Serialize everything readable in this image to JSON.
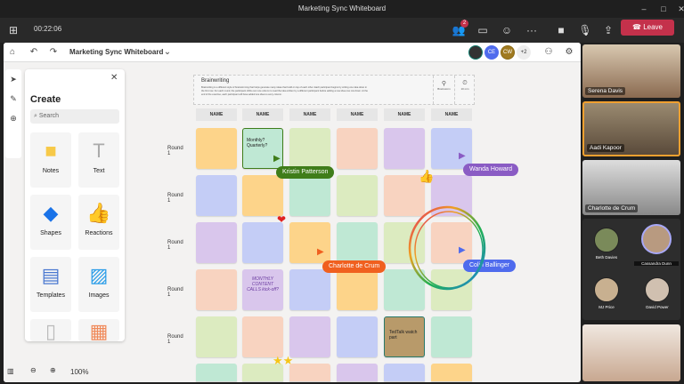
{
  "window": {
    "title": "Marketing Sync Whiteboard"
  },
  "meeting": {
    "timer": "00:22:06",
    "participants_badge": "2",
    "leave_label": "Leave"
  },
  "whiteboard": {
    "title": "Marketing Sync Whiteboard",
    "extra_collaborators": "+2",
    "collaborators": [
      {
        "initials": "",
        "color": "#0e7a6b"
      },
      {
        "initials": "CE",
        "color": "#4f6bed"
      },
      {
        "initials": "CW",
        "color": "#8a6a14"
      }
    ],
    "zoom": "100%"
  },
  "create_panel": {
    "title": "Create",
    "search_placeholder": "Search",
    "items": [
      {
        "label": "Notes",
        "icon": "sticky-note-icon"
      },
      {
        "label": "Text",
        "icon": "text-icon"
      },
      {
        "label": "Shapes",
        "icon": "shapes-icon"
      },
      {
        "label": "Reactions",
        "icon": "thumbs-up-icon"
      },
      {
        "label": "Templates",
        "icon": "templates-icon"
      },
      {
        "label": "Images",
        "icon": "image-icon"
      }
    ]
  },
  "template": {
    "title": "Brainwriting",
    "description": "Brainwriting is a different style of brainstorming that helps generate many ideas that build on top of each other. Each participant begins by writing one idea down in the first row. For each round, the participant shifts over one column to read the idea written by a different participant before adding a new idea one row down. At the end of the exercise, each participant will have added one idea to every column.",
    "brainstorm_label": "Brainstorm",
    "timer_label": "10 min",
    "columns": [
      "NAME",
      "NAME",
      "NAME",
      "NAME",
      "NAME",
      "NAME"
    ],
    "rows": [
      "Round 1",
      "Round 1",
      "Round 1",
      "Round 1",
      "Round 1"
    ],
    "colors": {
      "orange": "#fdd48a",
      "green": "#bfe5c9",
      "lime": "#dcebc0",
      "peach": "#f8d3c0",
      "purple": "#d9c6ec",
      "blue": "#c4cdf6",
      "mint": "#bfe8d4",
      "brown": "#b89a6a"
    },
    "grid": [
      [
        "orange",
        "mint",
        "lime",
        "peach",
        "purple",
        "blue"
      ],
      [
        "blue",
        "orange",
        "mint",
        "lime",
        "peach",
        "purple"
      ],
      [
        "purple",
        "blue",
        "orange",
        "mint",
        "lime",
        "peach"
      ],
      [
        "peach",
        "purple",
        "blue",
        "orange",
        "mint",
        "lime"
      ],
      [
        "lime",
        "peach",
        "purple",
        "blue",
        "brown",
        "mint"
      ],
      [
        "mint",
        "lime",
        "peach",
        "purple",
        "blue",
        "orange"
      ]
    ],
    "notes": [
      {
        "text": "Monthly? Quarterly?"
      },
      {
        "text": "MONTHLY CONTENT CALLS kick-off?"
      },
      {
        "text": "TedTalk watch part"
      }
    ]
  },
  "cursors": [
    {
      "name": "Kristin Patterson",
      "color": "#3f7d1a"
    },
    {
      "name": "Wanda Howard",
      "color": "#8a5cc4"
    },
    {
      "name": "Charlotte de Crum",
      "color": "#f0601f"
    },
    {
      "name": "Colin Ballinger",
      "color": "#4f6bed"
    }
  ],
  "videos": [
    {
      "name": "Serena Davis"
    },
    {
      "name": "Aadi Kapoor",
      "active_color": "#f0a030"
    },
    {
      "name": "Charlotte de Crum"
    }
  ],
  "gallery": [
    {
      "name": "Beth Davies"
    },
    {
      "name": "Cassandra Dunn"
    },
    {
      "name": "MJ Price"
    },
    {
      "name": "David Power"
    }
  ]
}
